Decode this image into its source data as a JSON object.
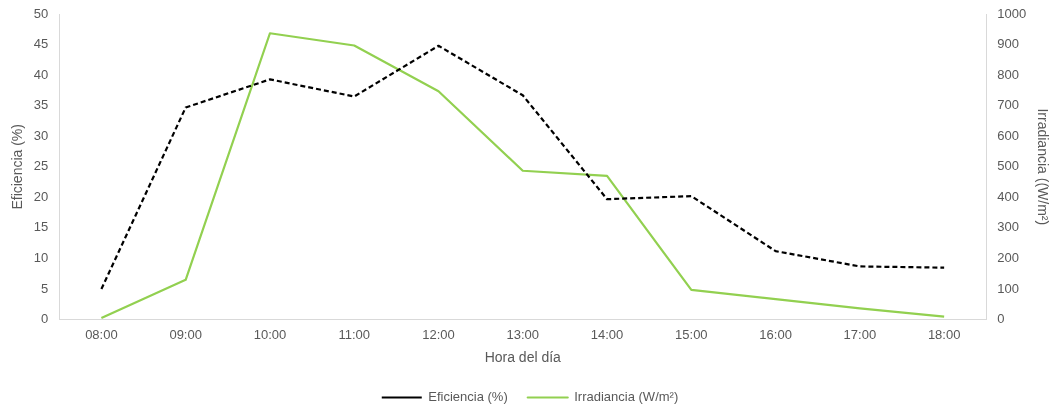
{
  "chart_data": {
    "type": "line",
    "xlabel": "Hora del día",
    "ylabel": "Eficiencia (%)",
    "y2label": "Irradiancia ((W/m²)",
    "categories": [
      "08:00",
      "09:00",
      "10:00",
      "11:00",
      "12:00",
      "13:00",
      "14:00",
      "15:00",
      "16:00",
      "17:00",
      "18:00"
    ],
    "series": [
      {
        "name": "Eficiencia (%)",
        "color": "#000000",
        "line_style": "dashed",
        "values": [
          5.0,
          34.7,
          39.3,
          36.5,
          44.8,
          36.7,
          19.7,
          20.2,
          11.2,
          8.7,
          8.5
        ]
      },
      {
        "name": "Irradiancia (W/m²)",
        "color": "#92d050",
        "line_style": "solid",
        "axis": "y2",
        "values": [
          5,
          130,
          937,
          897,
          747,
          487,
          470,
          97,
          67,
          37,
          10
        ]
      }
    ],
    "ylim": [
      0,
      50
    ],
    "yticks": [
      0,
      5,
      10,
      15,
      20,
      25,
      30,
      35,
      40,
      45,
      50
    ],
    "y2lim": [
      0,
      1000
    ],
    "y2ticks": [
      0,
      100,
      200,
      300,
      400,
      500,
      600,
      700,
      800,
      900,
      1000
    ],
    "grid": false,
    "legend": "bottom"
  }
}
